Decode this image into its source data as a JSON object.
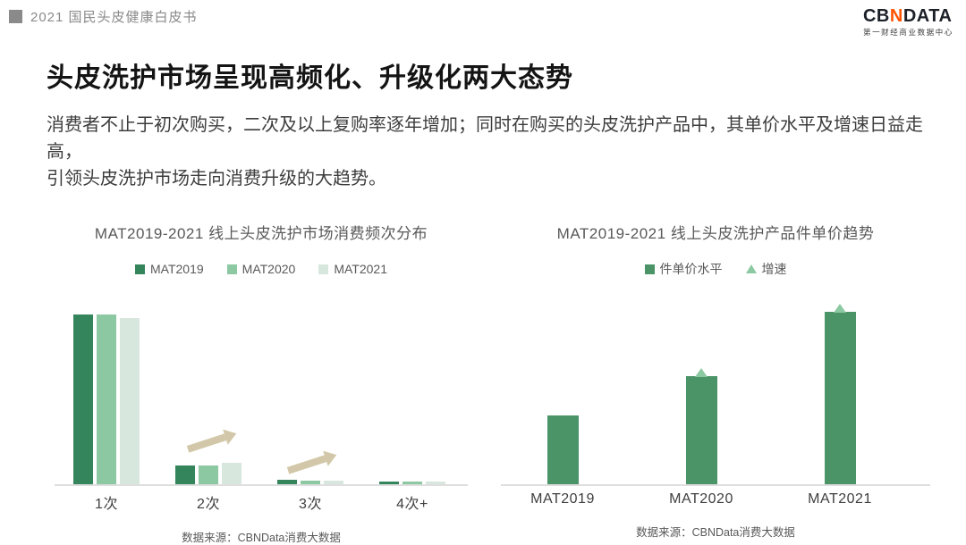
{
  "header": {
    "doc_title": "2021 国民头皮健康白皮书",
    "logo": {
      "cb": "CB",
      "n": "N",
      "data": "DATA",
      "subtitle": "第一财经商业数据中心"
    }
  },
  "title": "头皮洗护市场呈现高频化、升级化两大态势",
  "body_lines": [
    "消费者不止于初次购买，二次及以上复购率逐年增加；同时在购买的头皮洗护产品中，其单价水平及增速日益走高，",
    "引领头皮洗护市场走向消费升级的大趋势。"
  ],
  "colors": {
    "bar_dark_green": "#35855c",
    "bar_mid_green": "#8cc8a2",
    "bar_light_green": "#d8e7de",
    "right_bar_green": "#4a9468",
    "marker_green": "#8cc8a2",
    "arrow_beige": "#d2c7a8",
    "axis_gray": "#dedede",
    "logo_orange": "#ff5500",
    "header_gray": "#8a8a8a",
    "title_black": "#141414",
    "chart_text_gray": "#595959"
  },
  "chart_data": [
    {
      "type": "bar",
      "title": "MAT2019-2021 线上头皮洗护市场消费频次分布",
      "categories": [
        "1次",
        "2次",
        "3次",
        "4次+"
      ],
      "series": [
        {
          "name": "MAT2019",
          "color": "#35855c",
          "values": [
            90.5,
            10.0,
            2.4,
            1.4
          ]
        },
        {
          "name": "MAT2020",
          "color": "#8cc8a2",
          "values": [
            90.5,
            10.0,
            1.9,
            1.4
          ]
        },
        {
          "name": "MAT2021",
          "color": "#d8e7de",
          "values": [
            88.6,
            11.4,
            1.9,
            1.4
          ]
        }
      ],
      "value_note": "no numeric axis shown; values estimated as % of plot height",
      "ylim": [
        0,
        100
      ],
      "legend_position": "top",
      "annotations": [
        {
          "type": "up-right-arrow",
          "near_category": "2次",
          "meaning": "growth"
        },
        {
          "type": "up-right-arrow",
          "near_category": "3次",
          "meaning": "growth"
        }
      ],
      "source": "数据来源：CBNData消费大数据"
    },
    {
      "type": "bar",
      "title": "MAT2019-2021 线上头皮洗护产品件单价趋势",
      "categories": [
        "MAT2019",
        "MAT2020",
        "MAT2021"
      ],
      "series": [
        {
          "name": "件单价水平",
          "color": "#4a9468",
          "values": [
            36.7,
            57.6,
            91.9
          ]
        }
      ],
      "markers": {
        "name": "增速",
        "shape": "triangle-up",
        "color": "#8cc8a2",
        "on": [
          false,
          true,
          true
        ]
      },
      "value_note": "no numeric axis shown; values estimated as % of plot height",
      "ylim": [
        0,
        100
      ],
      "legend_position": "top",
      "source": "数据来源：CBNData消费大数据"
    }
  ]
}
